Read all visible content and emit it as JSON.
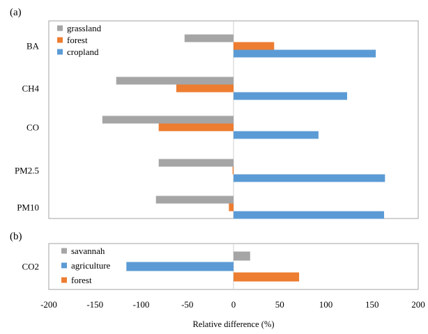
{
  "chart_data": [
    {
      "panel_label": "(a)",
      "type": "bar",
      "orientation": "horizontal",
      "categories": [
        "BA",
        "CH4",
        "CO",
        "PM2.5",
        "PM10"
      ],
      "series": [
        {
          "name": "grassland",
          "color": "#a5a5a5",
          "values": [
            -53,
            -127,
            -142,
            -81,
            -84
          ]
        },
        {
          "name": "forest",
          "color": "#ed7d31",
          "values": [
            44,
            -62,
            -81,
            -1,
            -5
          ]
        },
        {
          "name": "cropland",
          "color": "#5b9bd5",
          "values": [
            154,
            123,
            92,
            164,
            163
          ]
        }
      ],
      "xlim": [
        -200,
        200
      ],
      "legend_position": "top-left",
      "grid": false
    },
    {
      "panel_label": "(b)",
      "type": "bar",
      "orientation": "horizontal",
      "categories": [
        "CO2"
      ],
      "series": [
        {
          "name": "savannah",
          "color": "#a5a5a5",
          "values": [
            18
          ]
        },
        {
          "name": "agriculture",
          "color": "#5b9bd5",
          "values": [
            -116
          ]
        },
        {
          "name": "forest",
          "color": "#ed7d31",
          "values": [
            71
          ]
        }
      ],
      "xlim": [
        -200,
        200
      ],
      "legend_position": "left",
      "grid": false
    }
  ],
  "x_axis": {
    "ticks": [
      -200,
      -150,
      -100,
      -50,
      0,
      50,
      100,
      150,
      200
    ],
    "label": "Relative difference (%)"
  }
}
